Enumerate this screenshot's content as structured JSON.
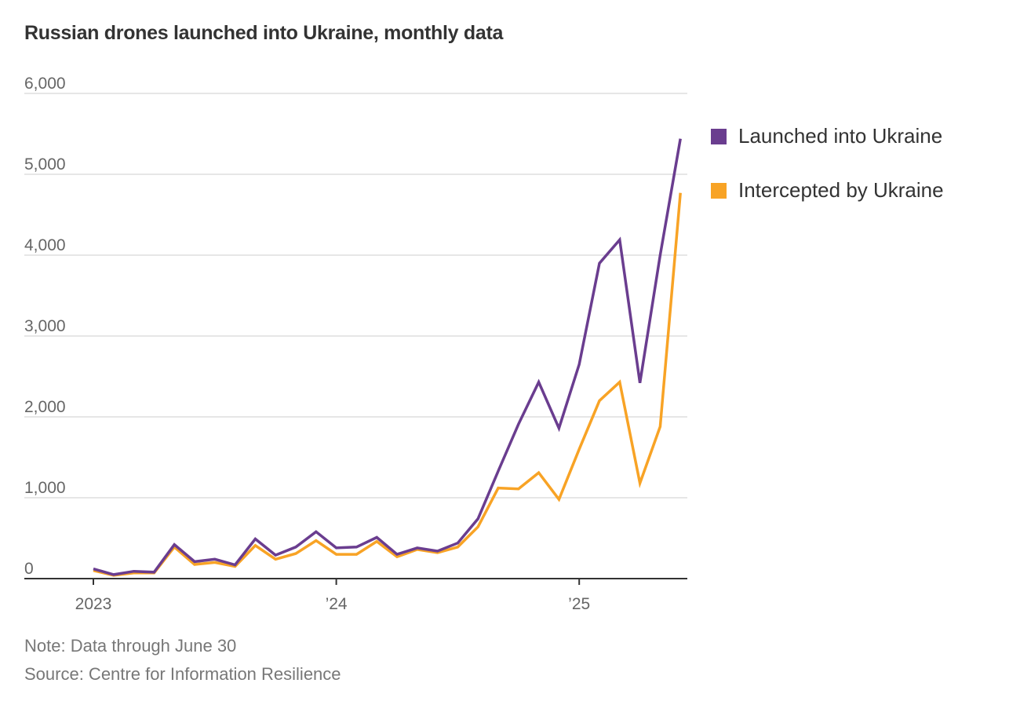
{
  "chart_data": {
    "type": "line",
    "title": "Russian drones launched into Ukraine, monthly data",
    "xlabel": "",
    "ylabel": "",
    "ylim": [
      0,
      6000
    ],
    "yticks": [
      0,
      1000,
      2000,
      3000,
      4000,
      5000,
      6000
    ],
    "ytick_labels": [
      "0",
      "1,000",
      "2,000",
      "3,000",
      "4,000",
      "5,000",
      "6,000"
    ],
    "x_start": "2023-01",
    "x_end": "2025-06",
    "xtick_labels": [
      {
        "month_index": 0,
        "label": "2023"
      },
      {
        "month_index": 12,
        "label": "’24"
      },
      {
        "month_index": 24,
        "label": "’25"
      }
    ],
    "grid": true,
    "legend_placement": "right",
    "series": [
      {
        "name": "Launched into Ukraine",
        "color": "#6a3d8f",
        "values": [
          120,
          50,
          90,
          80,
          420,
          210,
          240,
          170,
          490,
          290,
          390,
          580,
          380,
          390,
          510,
          300,
          380,
          340,
          440,
          740,
          1330,
          1910,
          2430,
          1860,
          2650,
          3900,
          4190,
          2420,
          4000,
          5440
        ]
      },
      {
        "name": "Intercepted by Ukraine",
        "color": "#f8a325",
        "values": [
          100,
          40,
          70,
          70,
          390,
          175,
          200,
          150,
          410,
          240,
          310,
          470,
          300,
          300,
          460,
          270,
          360,
          320,
          390,
          640,
          1120,
          1110,
          1310,
          980,
          1600,
          2200,
          2430,
          1180,
          1880,
          4770
        ]
      }
    ]
  },
  "note": "Note: Data through June 30",
  "source": "Source: Centre for Information Resilience"
}
